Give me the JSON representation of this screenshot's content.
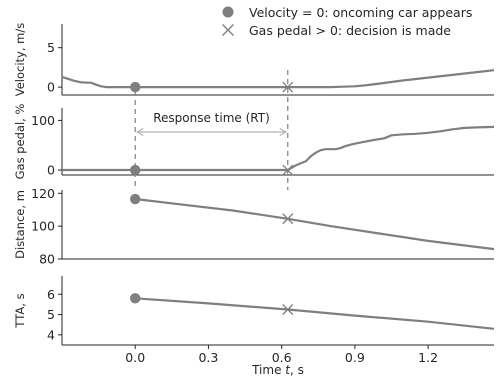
{
  "chart_data": {
    "type": "line",
    "x_label": "Time t, s",
    "x_range": [
      -0.3,
      1.47
    ],
    "x_ticks": [
      0.0,
      0.3,
      0.6,
      0.9,
      1.2
    ],
    "x_tick_labels": [
      "0.0",
      "0.3",
      "0.6",
      "0.9",
      "1.2"
    ],
    "legend_position": "top-right",
    "legend": [
      {
        "name": "Velocity = 0: oncoming car appears",
        "marker": "circle"
      },
      {
        "name": "Gas pedal > 0: decision is made",
        "marker": "x"
      }
    ],
    "events": {
      "oncoming_car_time": 0.0,
      "decision_time": 0.625
    },
    "annotation": {
      "label": "Response time (RT)",
      "from": 0.0,
      "to": 0.625
    },
    "panels": [
      {
        "ylabel": "Velocity, m/s",
        "ylim": [
          -1.0,
          8.0
        ],
        "yticks": [
          0,
          5
        ],
        "x": [
          -0.3,
          -0.25,
          -0.22,
          -0.18,
          -0.16,
          -0.14,
          -0.12,
          -0.1,
          -0.05,
          0.0,
          0.2,
          0.4,
          0.625,
          0.8,
          0.85,
          0.9,
          0.95,
          1.0,
          1.1,
          1.2,
          1.3,
          1.4,
          1.47
        ],
        "values": [
          1.3,
          0.8,
          0.6,
          0.55,
          0.3,
          0.1,
          0.0,
          0.0,
          0.0,
          0.0,
          0.0,
          0.0,
          0.0,
          0.0,
          0.05,
          0.1,
          0.25,
          0.45,
          0.85,
          1.2,
          1.55,
          1.9,
          2.15
        ],
        "markers": [
          {
            "type": "circle",
            "x": 0.0,
            "y": 0.0
          },
          {
            "type": "x",
            "x": 0.625,
            "y": 0.0
          }
        ]
      },
      {
        "ylabel": "Gas pedal, %",
        "ylim": [
          -10,
          125
        ],
        "yticks": [
          0,
          100
        ],
        "x": [
          -0.3,
          0.0,
          0.3,
          0.625,
          0.66,
          0.7,
          0.72,
          0.74,
          0.76,
          0.78,
          0.82,
          0.84,
          0.86,
          0.89,
          0.93,
          0.97,
          1.02,
          1.05,
          1.1,
          1.15,
          1.2,
          1.25,
          1.3,
          1.35,
          1.4,
          1.47
        ],
        "values": [
          0,
          0,
          0,
          0,
          10,
          18,
          28,
          35,
          40,
          42,
          42,
          44,
          48,
          52,
          56,
          60,
          64,
          70,
          72,
          73,
          75,
          78,
          82,
          85,
          86,
          87
        ],
        "markers": [
          {
            "type": "circle",
            "x": 0.0,
            "y": 0
          },
          {
            "type": "x",
            "x": 0.625,
            "y": 0
          }
        ]
      },
      {
        "ylabel": "Distance, m",
        "ylim": [
          80,
          122
        ],
        "yticks": [
          80,
          100,
          120
        ],
        "x": [
          0.0,
          0.2,
          0.4,
          0.625,
          0.8,
          1.0,
          1.2,
          1.47
        ],
        "values": [
          116.5,
          113.0,
          109.5,
          104.5,
          100.0,
          95.5,
          91.0,
          86.0
        ],
        "markers": [
          {
            "type": "circle",
            "x": 0.0,
            "y": 116.5
          },
          {
            "type": "x",
            "x": 0.625,
            "y": 104.5
          }
        ]
      },
      {
        "ylabel": "TTA, s",
        "ylim": [
          3.5,
          6.9
        ],
        "yticks": [
          4,
          5,
          6
        ],
        "x": [
          0.0,
          0.3,
          0.625,
          0.9,
          1.2,
          1.47
        ],
        "values": [
          5.8,
          5.55,
          5.25,
          4.95,
          4.65,
          4.3
        ],
        "markers": [
          {
            "type": "circle",
            "x": 0.0,
            "y": 5.8
          },
          {
            "type": "x",
            "x": 0.625,
            "y": 5.25
          }
        ]
      }
    ]
  },
  "colors": {
    "line": "#7f7f7f",
    "marker": "#7f7f7f",
    "axis": "#262626",
    "dashed": "#7f7f7f",
    "arrow": "#b3b3b3"
  }
}
